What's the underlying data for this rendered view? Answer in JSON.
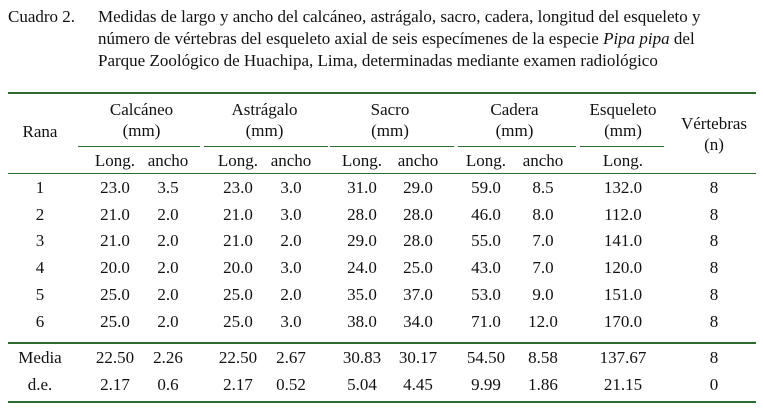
{
  "caption": {
    "label": "Cuadro 2.",
    "lines": [
      "Medidas de largo y ancho del calcáneo, astrágalo, sacro, cadera, longitud del esqueleto y",
      "número de vértebras del esqueleto axial de seis especímenes de la especie ",
      "Parque Zoológico de Huachipa, Lima, determinadas mediante examen radiológico"
    ],
    "species_italic": "Pipa pipa",
    "line2_suffix": " del"
  },
  "table": {
    "row_header": "Rana",
    "groups": [
      {
        "line1": "Calcáneo",
        "line2": "(mm)"
      },
      {
        "line1": "Astrágalo",
        "line2": "(mm)"
      },
      {
        "line1": "Sacro",
        "line2": "(mm)"
      },
      {
        "line1": "Cadera",
        "line2": "(mm)"
      },
      {
        "line1": "Esqueleto",
        "line2": "(mm)"
      },
      {
        "line1": "Vértebras",
        "line2": "(n)"
      }
    ],
    "subheaders": [
      "Long.",
      "ancho",
      "Long.",
      "ancho",
      "Long.",
      "ancho",
      "Long.",
      "ancho",
      "Long."
    ],
    "rows": [
      [
        "1",
        "23.0",
        "3.5",
        "23.0",
        "3.0",
        "31.0",
        "29.0",
        "59.0",
        "8.5",
        "132.0",
        "8"
      ],
      [
        "2",
        "21.0",
        "2.0",
        "21.0",
        "3.0",
        "28.0",
        "28.0",
        "46.0",
        "8.0",
        "112.0",
        "8"
      ],
      [
        "3",
        "21.0",
        "2.0",
        "21.0",
        "2.0",
        "29.0",
        "28.0",
        "55.0",
        "7.0",
        "141.0",
        "8"
      ],
      [
        "4",
        "20.0",
        "2.0",
        "20.0",
        "3.0",
        "24.0",
        "25.0",
        "43.0",
        "7.0",
        "120.0",
        "8"
      ],
      [
        "5",
        "25.0",
        "2.0",
        "25.0",
        "2.0",
        "35.0",
        "37.0",
        "53.0",
        "9.0",
        "151.0",
        "8"
      ],
      [
        "6",
        "25.0",
        "2.0",
        "25.0",
        "3.0",
        "38.0",
        "34.0",
        "71.0",
        "12.0",
        "170.0",
        "8"
      ]
    ],
    "summary": [
      [
        "Media",
        "22.50",
        "2.26",
        "22.50",
        "2.67",
        "30.83",
        "30.17",
        "54.50",
        "8.58",
        "137.67",
        "8"
      ],
      [
        "d.e.",
        "2.17",
        "0.6",
        "2.17",
        "0.52",
        "5.04",
        "4.45",
        "9.99",
        "1.86",
        "21.15",
        "0"
      ]
    ],
    "rule_color": "#2e6b2e"
  }
}
